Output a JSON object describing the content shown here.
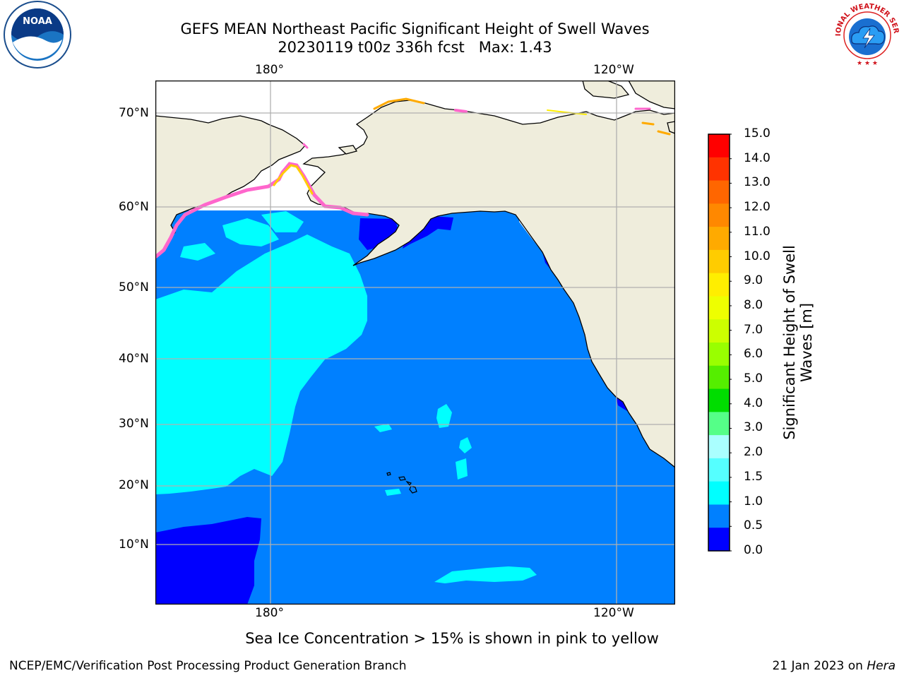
{
  "header": {
    "title_line1": "GEFS MEAN Northeast Pacific Significant Height of Swell Waves",
    "title_line2": "20230119 t00z 336h fcst   Max: 1.43"
  },
  "logos": {
    "left": {
      "name": "noaa-logo",
      "text": "NOAA"
    },
    "right": {
      "name": "nws-logo",
      "text": "NATIONAL WEATHER SERVICE"
    }
  },
  "map": {
    "lon_labels_top": [
      "180°",
      "120°W"
    ],
    "lon_labels_bottom": [
      "180°",
      "120°W"
    ],
    "lat_labels": [
      "70°N",
      "60°N",
      "50°N",
      "40°N",
      "30°N",
      "20°N",
      "10°N"
    ],
    "colors": {
      "land": "#efeddc",
      "coast": "#000000",
      "grid": "#b0b0b0",
      "ice_edge": [
        "#ff66cc",
        "#ffaa00",
        "#ffff00"
      ]
    }
  },
  "colorbar": {
    "title": "Significant Height of Swell Waves [m]",
    "title_line1": "Significant Height of Swell",
    "title_line2": "Waves [m]",
    "ticks": [
      "15.0",
      "14.0",
      "13.0",
      "12.0",
      "11.0",
      "10.0",
      "9.0",
      "8.0",
      "7.0",
      "6.0",
      "5.0",
      "4.0",
      "3.0",
      "2.0",
      "1.5",
      "1.0",
      "0.5",
      "0.0"
    ],
    "colors_top_to_bottom": [
      "#ff0000",
      "#ff3300",
      "#ff6600",
      "#ff8800",
      "#ffaa00",
      "#ffcc00",
      "#ffee00",
      "#eeff00",
      "#ccff00",
      "#99ff00",
      "#55ee00",
      "#00dd00",
      "#55ff88",
      "#aaffff",
      "#55ffff",
      "#00ffff",
      "#0080ff",
      "#0000ff"
    ]
  },
  "note": "Sea Ice Concentration > 15% is shown in pink to yellow",
  "footer": {
    "left": "NCEP/EMC/Verification Post Processing Product Generation Branch",
    "right_prefix": "21 Jan 2023 on ",
    "right_italic": "Hera"
  }
}
